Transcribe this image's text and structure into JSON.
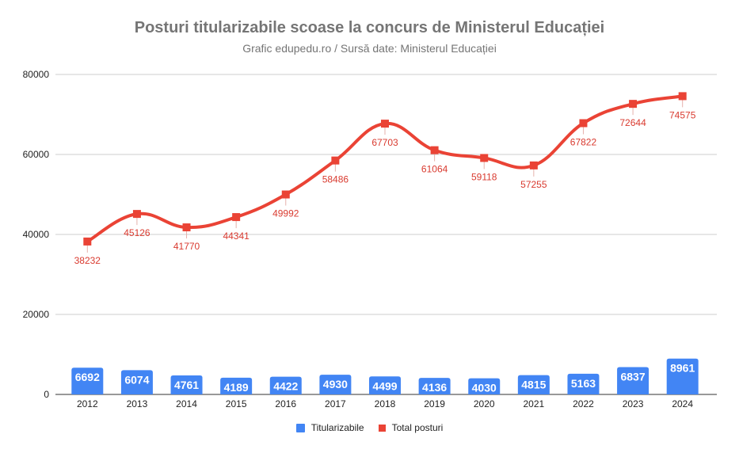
{
  "chart_data": {
    "type": "bar+line",
    "title": "Posturi titularizabile scoase la concurs de Ministerul Educației",
    "subtitle": "Grafic edupedu.ro / Sursă date: Ministerul Educației",
    "categories": [
      "2012",
      "2013",
      "2014",
      "2015",
      "2016",
      "2017",
      "2018",
      "2019",
      "2020",
      "2021",
      "2022",
      "2023",
      "2024"
    ],
    "series": [
      {
        "name": "Titularizabile",
        "type": "bar",
        "color": "#4285f4",
        "values": [
          6692,
          6074,
          4761,
          4189,
          4422,
          4930,
          4499,
          4136,
          4030,
          4815,
          5163,
          6837,
          8961
        ]
      },
      {
        "name": "Total posturi",
        "type": "line",
        "color": "#ea4335",
        "values": [
          38232,
          45126,
          41770,
          44341,
          49992,
          58486,
          67703,
          61064,
          59118,
          57255,
          67822,
          72644,
          74575
        ]
      }
    ],
    "yticks": [
      "0",
      "20000",
      "40000",
      "60000",
      "80000"
    ],
    "ylim": [
      0,
      80000
    ],
    "grid": true,
    "legend": "bottom"
  }
}
